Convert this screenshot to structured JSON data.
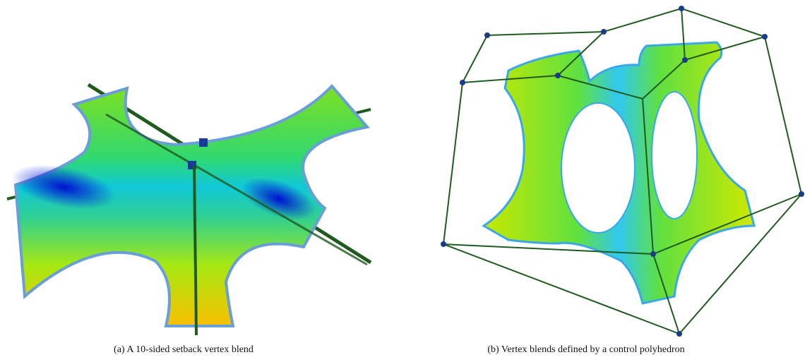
{
  "figure": {
    "subfigures": [
      {
        "caption": "(a) A 10-sided setback vertex blend"
      },
      {
        "caption": "(b) Vertex blends defined by a control polyhedron"
      }
    ]
  }
}
